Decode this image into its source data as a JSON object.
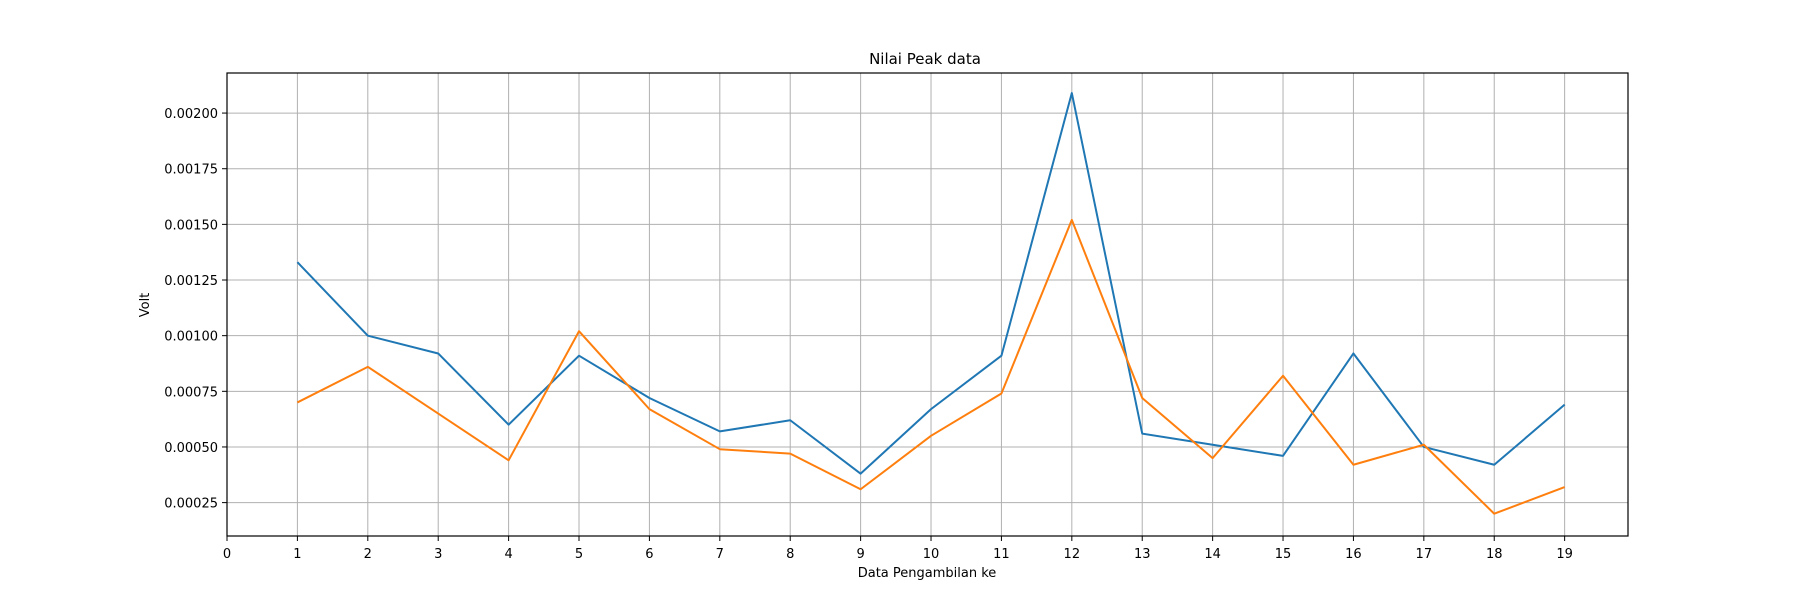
{
  "chart_data": {
    "type": "line",
    "title": "Nilai Peak data",
    "xlabel": "Data Pengambilan ke",
    "ylabel": "Volt",
    "x": [
      1,
      2,
      3,
      4,
      5,
      6,
      7,
      8,
      9,
      10,
      11,
      12,
      13,
      14,
      15,
      16,
      17,
      18,
      19
    ],
    "series": [
      {
        "color": "#1f77b4",
        "values": [
          0.00133,
          0.001,
          0.00092,
          0.0006,
          0.00091,
          0.00072,
          0.00057,
          0.00062,
          0.00038,
          0.00067,
          0.00091,
          0.00209,
          0.00056,
          0.00051,
          0.00046,
          0.00092,
          0.0005,
          0.00042,
          0.00069
        ]
      },
      {
        "color": "#ff7f0e",
        "values": [
          0.0007,
          0.00086,
          0.00065,
          0.00044,
          0.00102,
          0.00067,
          0.00049,
          0.00047,
          0.00031,
          0.00055,
          0.00074,
          0.00152,
          0.00072,
          0.00045,
          0.00082,
          0.00042,
          0.00051,
          0.0002,
          0.00032
        ]
      }
    ],
    "xticks": [
      "0",
      "1",
      "2",
      "3",
      "4",
      "5",
      "6",
      "7",
      "8",
      "9",
      "10",
      "11",
      "12",
      "13",
      "14",
      "15",
      "16",
      "17",
      "18",
      "19"
    ],
    "yticks": [
      "0.00025",
      "0.00050",
      "0.00075",
      "0.00100",
      "0.00125",
      "0.00150",
      "0.00175",
      "0.00200"
    ],
    "xlim": [
      0,
      19.9
    ],
    "ylim": [
      0.0001,
      0.00218
    ],
    "grid": true
  }
}
